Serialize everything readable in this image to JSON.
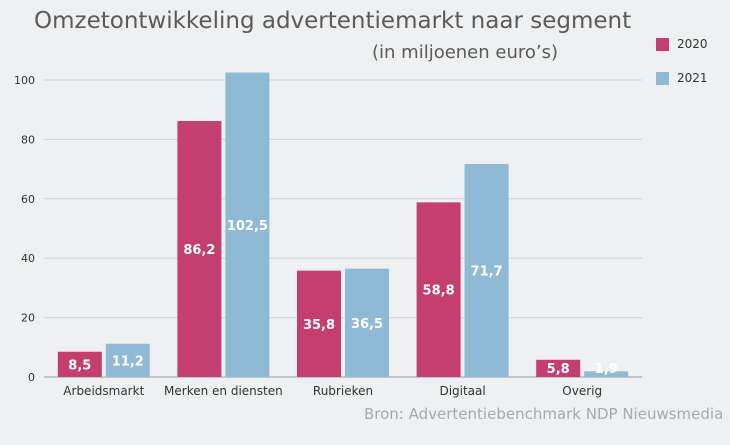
{
  "chart_data": {
    "type": "bar",
    "title": "Omzetontwikkeling advertentiemarkt naar segment",
    "subtitle": "(in miljoenen euro’s)",
    "categories": [
      "Arbeidsmarkt",
      "Merken en diensten",
      "Rubrieken",
      "Digitaal",
      "Overig"
    ],
    "series": [
      {
        "name": "2020",
        "color": "#c53f6e",
        "values": [
          8.5,
          86.2,
          35.8,
          58.8,
          5.8
        ],
        "labels": [
          "8,5",
          "86,2",
          "35,8",
          "58,8",
          "5,8"
        ]
      },
      {
        "name": "2021",
        "color": "#8ebad5",
        "values": [
          11.2,
          102.5,
          36.5,
          71.7,
          1.9
        ],
        "labels": [
          "11,2",
          "102,5",
          "36,5",
          "71,7",
          "1,9"
        ]
      }
    ],
    "yticks": [
      "0",
      "20",
      "40",
      "60",
      "80",
      "100"
    ],
    "ylim": [
      0,
      105
    ],
    "grid": true,
    "legend": "top-right",
    "source": "Bron: Advertentiebenchmark NDP Nieuwsmedia"
  }
}
